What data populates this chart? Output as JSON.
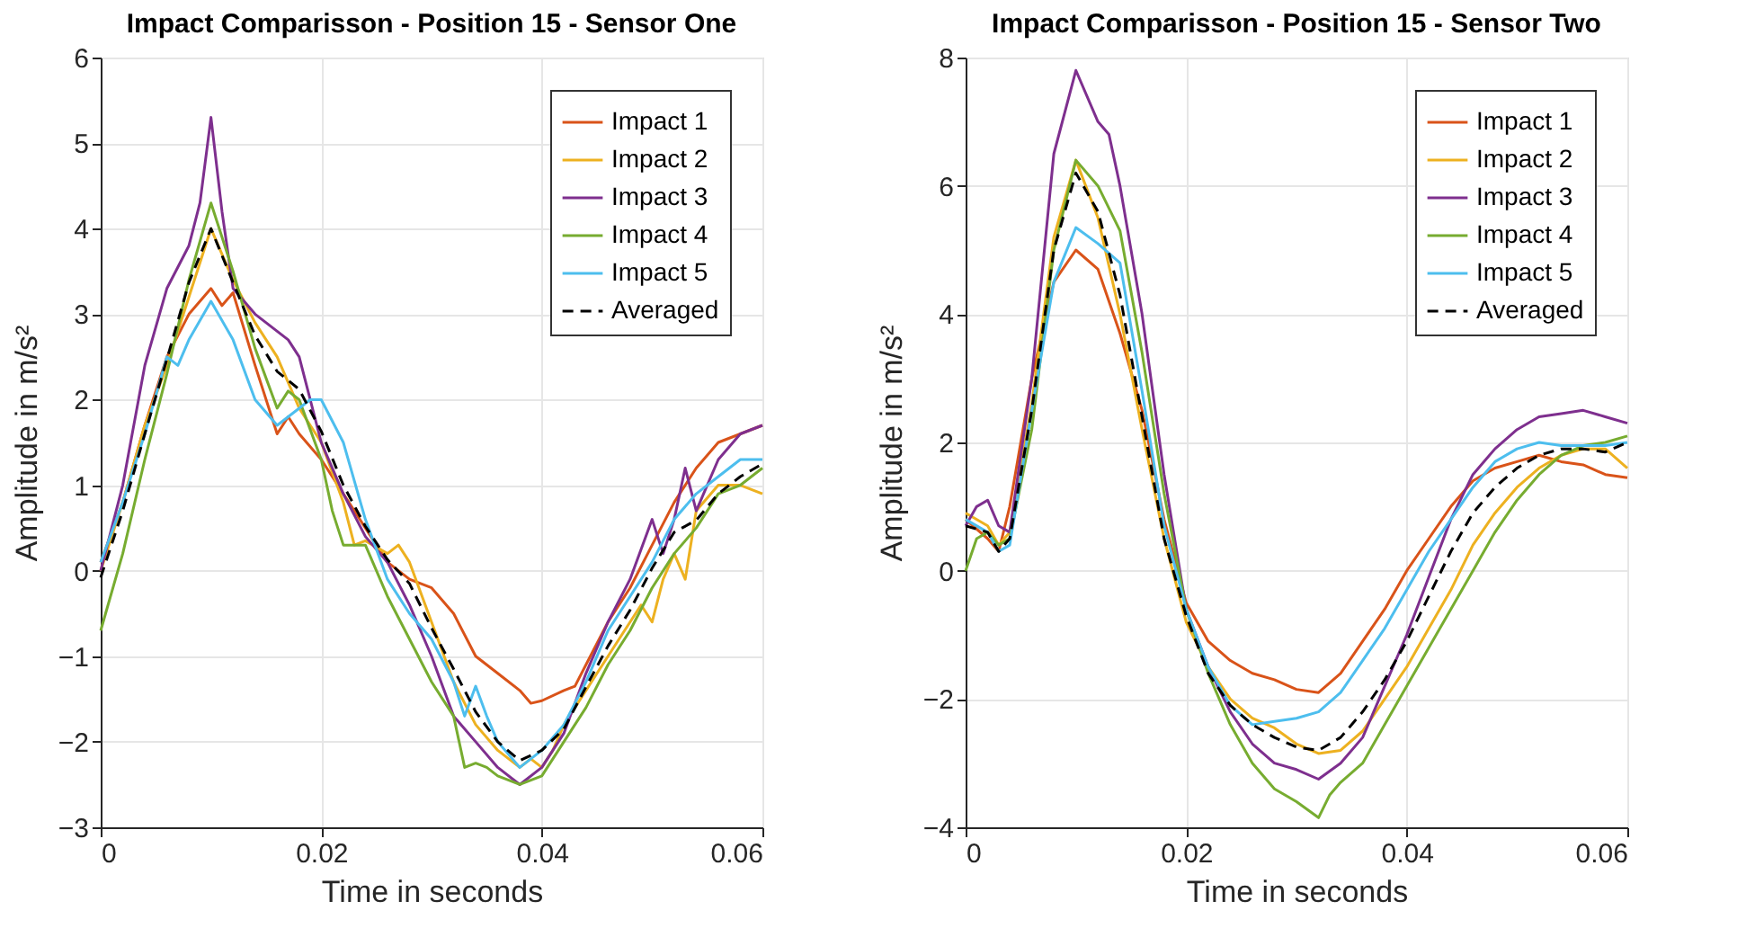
{
  "chart_data": [
    {
      "type": "line",
      "title": "Impact Comparisson - Position 15 - Sensor One",
      "xlabel": "Time in seconds",
      "ylabel": "Amplitude in m/s²",
      "xlim": [
        0,
        0.06
      ],
      "xticks": [
        0,
        0.02,
        0.04,
        0.06
      ],
      "ylim": [
        -3,
        6
      ],
      "yticks": [
        -3,
        -2,
        -1,
        0,
        1,
        2,
        3,
        4,
        5,
        6
      ],
      "grid": true,
      "legend": "top right",
      "series": [
        {
          "name": "Impact 1",
          "color": "#d95319",
          "line_style": "solid",
          "x": [
            0,
            0.002,
            0.004,
            0.006,
            0.008,
            0.01,
            0.011,
            0.012,
            0.014,
            0.016,
            0.017,
            0.018,
            0.02,
            0.022,
            0.024,
            0.026,
            0.028,
            0.03,
            0.032,
            0.034,
            0.036,
            0.038,
            0.039,
            0.04,
            0.042,
            0.043,
            0.044,
            0.046,
            0.048,
            0.05,
            0.052,
            0.054,
            0.056,
            0.058,
            0.06
          ],
          "values": [
            0.1,
            0.8,
            1.7,
            2.5,
            3.0,
            3.3,
            3.1,
            3.25,
            2.4,
            1.6,
            1.8,
            1.6,
            1.3,
            0.9,
            0.5,
            0.1,
            -0.1,
            -0.2,
            -0.5,
            -1.0,
            -1.2,
            -1.4,
            -1.55,
            -1.52,
            -1.4,
            -1.35,
            -1.1,
            -0.6,
            -0.2,
            0.3,
            0.8,
            1.2,
            1.5,
            1.6,
            1.7
          ]
        },
        {
          "name": "Impact 2",
          "color": "#edb120",
          "line_style": "solid",
          "x": [
            0,
            0.002,
            0.004,
            0.006,
            0.008,
            0.01,
            0.012,
            0.014,
            0.016,
            0.018,
            0.02,
            0.022,
            0.023,
            0.024,
            0.026,
            0.027,
            0.028,
            0.03,
            0.032,
            0.034,
            0.036,
            0.038,
            0.039,
            0.04,
            0.041,
            0.042,
            0.044,
            0.046,
            0.048,
            0.049,
            0.05,
            0.051,
            0.052,
            0.053,
            0.054,
            0.056,
            0.058,
            0.06
          ],
          "values": [
            0.0,
            0.8,
            1.7,
            2.4,
            3.2,
            4.0,
            3.4,
            2.9,
            2.5,
            1.9,
            1.5,
            0.8,
            0.3,
            0.35,
            0.2,
            0.3,
            0.1,
            -0.6,
            -1.3,
            -1.8,
            -2.1,
            -2.3,
            -2.2,
            -2.3,
            -2.1,
            -1.8,
            -1.4,
            -1.0,
            -0.6,
            -0.4,
            -0.6,
            -0.1,
            0.2,
            -0.1,
            0.7,
            1.0,
            1.0,
            0.9
          ]
        },
        {
          "name": "Impact 3",
          "color": "#7e2f8e",
          "line_style": "solid",
          "x": [
            0,
            0.002,
            0.004,
            0.006,
            0.008,
            0.009,
            0.01,
            0.011,
            0.012,
            0.014,
            0.016,
            0.017,
            0.018,
            0.02,
            0.022,
            0.024,
            0.026,
            0.028,
            0.03,
            0.032,
            0.034,
            0.036,
            0.038,
            0.04,
            0.042,
            0.044,
            0.046,
            0.048,
            0.05,
            0.051,
            0.052,
            0.053,
            0.054,
            0.056,
            0.058,
            0.06
          ],
          "values": [
            0.0,
            1.0,
            2.4,
            3.3,
            3.8,
            4.3,
            5.3,
            4.2,
            3.3,
            3.0,
            2.8,
            2.7,
            2.5,
            1.5,
            0.9,
            0.4,
            0.1,
            -0.4,
            -1.0,
            -1.7,
            -2.0,
            -2.3,
            -2.5,
            -2.3,
            -1.9,
            -1.2,
            -0.6,
            -0.1,
            0.6,
            0.2,
            0.6,
            1.2,
            0.7,
            1.3,
            1.6,
            1.7
          ]
        },
        {
          "name": "Impact 4",
          "color": "#77ac30",
          "line_style": "solid",
          "x": [
            0,
            0.002,
            0.004,
            0.006,
            0.008,
            0.01,
            0.012,
            0.014,
            0.016,
            0.017,
            0.018,
            0.02,
            0.021,
            0.022,
            0.024,
            0.026,
            0.028,
            0.03,
            0.032,
            0.033,
            0.034,
            0.035,
            0.036,
            0.038,
            0.04,
            0.042,
            0.044,
            0.046,
            0.048,
            0.05,
            0.052,
            0.054,
            0.056,
            0.058,
            0.06
          ],
          "values": [
            -0.7,
            0.2,
            1.3,
            2.3,
            3.4,
            4.3,
            3.5,
            2.6,
            1.9,
            2.1,
            2.0,
            1.3,
            0.7,
            0.3,
            0.3,
            -0.3,
            -0.8,
            -1.3,
            -1.7,
            -2.3,
            -2.25,
            -2.3,
            -2.4,
            -2.5,
            -2.4,
            -2.0,
            -1.6,
            -1.1,
            -0.7,
            -0.2,
            0.2,
            0.5,
            0.9,
            1.0,
            1.2
          ]
        },
        {
          "name": "Impact 5",
          "color": "#4dbeee",
          "line_style": "solid",
          "x": [
            0,
            0.002,
            0.004,
            0.006,
            0.007,
            0.008,
            0.01,
            0.012,
            0.014,
            0.016,
            0.018,
            0.019,
            0.02,
            0.022,
            0.024,
            0.026,
            0.028,
            0.03,
            0.032,
            0.033,
            0.034,
            0.035,
            0.036,
            0.038,
            0.04,
            0.042,
            0.044,
            0.046,
            0.048,
            0.05,
            0.052,
            0.054,
            0.056,
            0.058,
            0.06
          ],
          "values": [
            0.1,
            0.8,
            1.6,
            2.5,
            2.4,
            2.7,
            3.15,
            2.7,
            2.0,
            1.7,
            1.9,
            2.0,
            2.0,
            1.5,
            0.6,
            -0.1,
            -0.5,
            -0.8,
            -1.3,
            -1.7,
            -1.35,
            -1.7,
            -2.0,
            -2.3,
            -2.1,
            -1.8,
            -1.3,
            -0.7,
            -0.3,
            0.1,
            0.6,
            0.9,
            1.1,
            1.3,
            1.3
          ]
        },
        {
          "name": "Averaged",
          "color": "#000000",
          "line_style": "dashed",
          "x": [
            0,
            0.002,
            0.004,
            0.006,
            0.008,
            0.01,
            0.012,
            0.014,
            0.016,
            0.018,
            0.02,
            0.022,
            0.024,
            0.026,
            0.028,
            0.03,
            0.032,
            0.034,
            0.036,
            0.038,
            0.04,
            0.042,
            0.044,
            0.046,
            0.048,
            0.05,
            0.052,
            0.054,
            0.056,
            0.058,
            0.06
          ],
          "values": [
            -0.08,
            0.7,
            1.6,
            2.47,
            3.37,
            4.0,
            3.37,
            2.75,
            2.33,
            2.12,
            1.63,
            1.0,
            0.52,
            0.13,
            -0.15,
            -0.67,
            -1.15,
            -1.65,
            -2.0,
            -2.22,
            -2.1,
            -1.85,
            -1.36,
            -0.88,
            -0.46,
            0.03,
            0.45,
            0.59,
            0.9,
            1.1,
            1.25
          ]
        }
      ]
    },
    {
      "type": "line",
      "title": "Impact Comparisson - Position 15 - Sensor Two",
      "xlabel": "Time in seconds",
      "ylabel": "Amplitude in m/s²",
      "xlim": [
        0,
        0.06
      ],
      "xticks": [
        0,
        0.02,
        0.04,
        0.06
      ],
      "ylim": [
        -4,
        8
      ],
      "yticks": [
        -4,
        -2,
        0,
        2,
        4,
        6,
        8
      ],
      "grid": true,
      "legend": "top right",
      "series": [
        {
          "name": "Impact 1",
          "color": "#d95319",
          "line_style": "solid",
          "x": [
            0,
            0.002,
            0.003,
            0.004,
            0.006,
            0.008,
            0.01,
            0.012,
            0.014,
            0.016,
            0.018,
            0.02,
            0.022,
            0.024,
            0.026,
            0.028,
            0.03,
            0.032,
            0.034,
            0.036,
            0.038,
            0.04,
            0.042,
            0.044,
            0.046,
            0.048,
            0.05,
            0.052,
            0.054,
            0.056,
            0.058,
            0.06
          ],
          "values": [
            0.8,
            0.5,
            0.3,
            1.0,
            3.0,
            4.5,
            5.0,
            4.7,
            3.7,
            2.5,
            0.8,
            -0.5,
            -1.1,
            -1.4,
            -1.6,
            -1.7,
            -1.85,
            -1.9,
            -1.6,
            -1.1,
            -0.6,
            0.0,
            0.5,
            1.0,
            1.4,
            1.6,
            1.7,
            1.8,
            1.7,
            1.65,
            1.5,
            1.45
          ]
        },
        {
          "name": "Impact 2",
          "color": "#edb120",
          "line_style": "solid",
          "x": [
            0,
            0.002,
            0.003,
            0.004,
            0.006,
            0.008,
            0.01,
            0.012,
            0.014,
            0.016,
            0.018,
            0.02,
            0.022,
            0.024,
            0.026,
            0.028,
            0.03,
            0.032,
            0.034,
            0.036,
            0.038,
            0.04,
            0.042,
            0.044,
            0.046,
            0.048,
            0.05,
            0.052,
            0.054,
            0.056,
            0.058,
            0.06
          ],
          "values": [
            0.9,
            0.7,
            0.4,
            0.6,
            2.6,
            5.2,
            6.4,
            5.5,
            4.0,
            2.2,
            0.5,
            -0.8,
            -1.5,
            -2.0,
            -2.3,
            -2.45,
            -2.7,
            -2.85,
            -2.8,
            -2.5,
            -2.0,
            -1.5,
            -0.9,
            -0.3,
            0.4,
            0.9,
            1.3,
            1.6,
            1.8,
            1.9,
            1.9,
            1.6
          ]
        },
        {
          "name": "Impact 3",
          "color": "#7e2f8e",
          "line_style": "solid",
          "x": [
            0,
            0.001,
            0.002,
            0.003,
            0.004,
            0.006,
            0.008,
            0.01,
            0.012,
            0.013,
            0.014,
            0.016,
            0.018,
            0.02,
            0.022,
            0.024,
            0.026,
            0.028,
            0.03,
            0.032,
            0.034,
            0.036,
            0.038,
            0.04,
            0.042,
            0.044,
            0.046,
            0.048,
            0.05,
            0.052,
            0.054,
            0.056,
            0.058,
            0.06
          ],
          "values": [
            0.7,
            1.0,
            1.1,
            0.7,
            0.6,
            3.0,
            6.5,
            7.8,
            7.0,
            6.8,
            6.0,
            4.0,
            1.5,
            -0.6,
            -1.5,
            -2.2,
            -2.7,
            -3.0,
            -3.1,
            -3.25,
            -3.0,
            -2.6,
            -1.8,
            -1.0,
            -0.1,
            0.8,
            1.5,
            1.9,
            2.2,
            2.4,
            2.45,
            2.5,
            2.4,
            2.3
          ]
        },
        {
          "name": "Impact 4",
          "color": "#77ac30",
          "line_style": "solid",
          "x": [
            0,
            0.001,
            0.002,
            0.003,
            0.004,
            0.006,
            0.008,
            0.01,
            0.012,
            0.014,
            0.016,
            0.018,
            0.02,
            0.022,
            0.024,
            0.026,
            0.028,
            0.03,
            0.032,
            0.033,
            0.034,
            0.036,
            0.038,
            0.04,
            0.042,
            0.044,
            0.046,
            0.048,
            0.05,
            0.052,
            0.054,
            0.056,
            0.058,
            0.06
          ],
          "values": [
            0.0,
            0.5,
            0.6,
            0.4,
            0.5,
            2.2,
            5.0,
            6.4,
            6.0,
            5.3,
            3.4,
            1.2,
            -0.6,
            -1.6,
            -2.4,
            -3.0,
            -3.4,
            -3.6,
            -3.85,
            -3.5,
            -3.3,
            -3.0,
            -2.4,
            -1.8,
            -1.2,
            -0.6,
            0.0,
            0.6,
            1.1,
            1.5,
            1.8,
            1.95,
            2.0,
            2.1
          ]
        },
        {
          "name": "Impact 5",
          "color": "#4dbeee",
          "line_style": "solid",
          "x": [
            0,
            0.002,
            0.003,
            0.004,
            0.006,
            0.008,
            0.01,
            0.012,
            0.014,
            0.016,
            0.018,
            0.02,
            0.022,
            0.024,
            0.026,
            0.028,
            0.03,
            0.032,
            0.034,
            0.036,
            0.038,
            0.04,
            0.042,
            0.044,
            0.046,
            0.048,
            0.05,
            0.052,
            0.054,
            0.056,
            0.058,
            0.06
          ],
          "values": [
            0.8,
            0.6,
            0.3,
            0.4,
            2.5,
            4.5,
            5.35,
            5.1,
            4.8,
            2.8,
            0.7,
            -0.6,
            -1.5,
            -2.1,
            -2.4,
            -2.35,
            -2.3,
            -2.2,
            -1.9,
            -1.4,
            -0.9,
            -0.3,
            0.3,
            0.8,
            1.3,
            1.7,
            1.9,
            2.0,
            1.95,
            1.95,
            1.95,
            2.0
          ]
        },
        {
          "name": "Averaged",
          "color": "#000000",
          "line_style": "dashed",
          "x": [
            0,
            0.002,
            0.003,
            0.004,
            0.006,
            0.008,
            0.01,
            0.012,
            0.014,
            0.016,
            0.018,
            0.02,
            0.022,
            0.024,
            0.026,
            0.028,
            0.03,
            0.032,
            0.034,
            0.036,
            0.038,
            0.04,
            0.042,
            0.044,
            0.046,
            0.048,
            0.05,
            0.052,
            0.054,
            0.056,
            0.058,
            0.06
          ],
          "values": [
            0.7,
            0.6,
            0.3,
            0.5,
            2.5,
            5.0,
            6.2,
            5.6,
            4.3,
            2.4,
            0.5,
            -0.7,
            -1.6,
            -2.1,
            -2.4,
            -2.6,
            -2.75,
            -2.8,
            -2.6,
            -2.2,
            -1.7,
            -1.1,
            -0.4,
            0.3,
            0.9,
            1.3,
            1.6,
            1.8,
            1.9,
            1.9,
            1.85,
            2.0
          ]
        }
      ]
    }
  ]
}
